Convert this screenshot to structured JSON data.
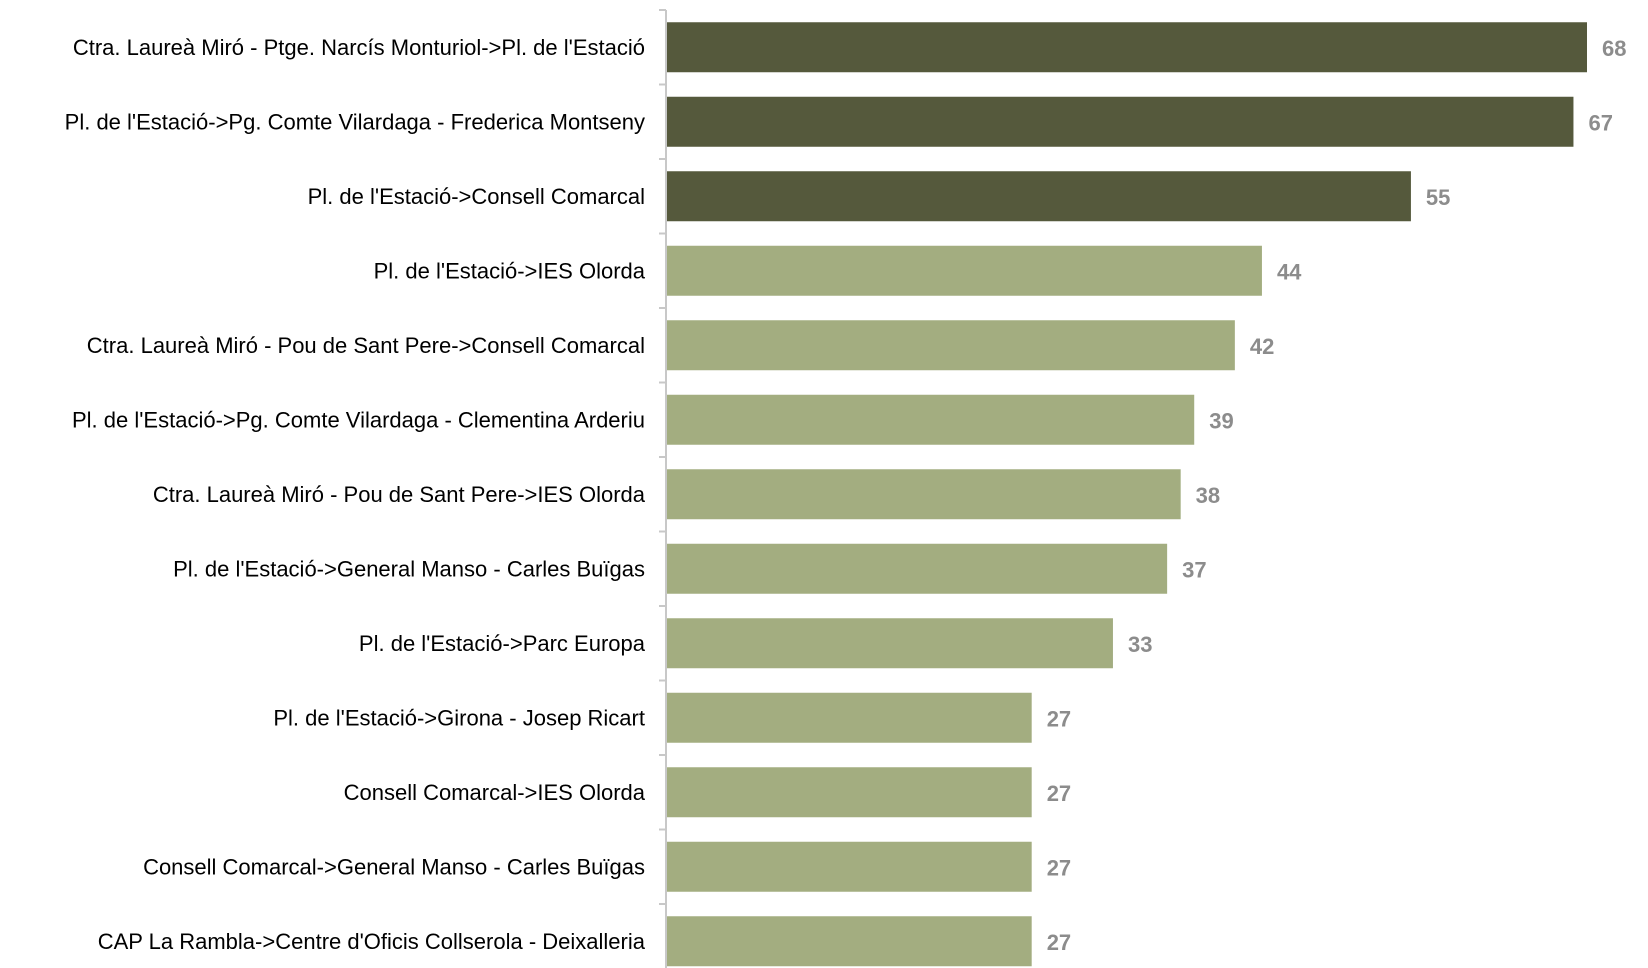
{
  "chart_data": {
    "type": "bar",
    "orientation": "horizontal",
    "title": "",
    "xlabel": "",
    "ylabel": "",
    "grid": false,
    "legend": "none",
    "xlim": [
      0,
      68
    ],
    "categories": [
      "Ctra. Laureà Miró - Ptge. Narcís Monturiol->Pl. de l'Estació",
      "Pl. de l'Estació->Pg. Comte Vilardaga - Frederica Montseny",
      "Pl. de l'Estació->Consell Comarcal",
      "Pl. de l'Estació->IES Olorda",
      "Ctra. Laureà Miró - Pou de Sant Pere->Consell Comarcal",
      "Pl. de l'Estació->Pg. Comte Vilardaga - Clementina Arderiu",
      "Ctra. Laureà Miró - Pou de Sant Pere->IES Olorda",
      "Pl. de l'Estació->General Manso - Carles Buïgas",
      "Pl. de l'Estació->Parc Europa",
      "Pl. de l'Estació->Girona - Josep Ricart",
      "Consell Comarcal->IES Olorda",
      "Consell Comarcal->General Manso - Carles Buïgas",
      "CAP La Rambla->Centre d'Oficis Collserola - Deixalleria"
    ],
    "values": [
      68,
      67,
      55,
      44,
      42,
      39,
      38,
      37,
      33,
      27,
      27,
      27,
      27
    ],
    "highlight_count": 3,
    "colors": {
      "highlight": "#55593c",
      "normal": "#a3ad80",
      "value_label": "#8c8c8c",
      "axis": "#c8c8c8",
      "category_label": "#000000"
    }
  }
}
